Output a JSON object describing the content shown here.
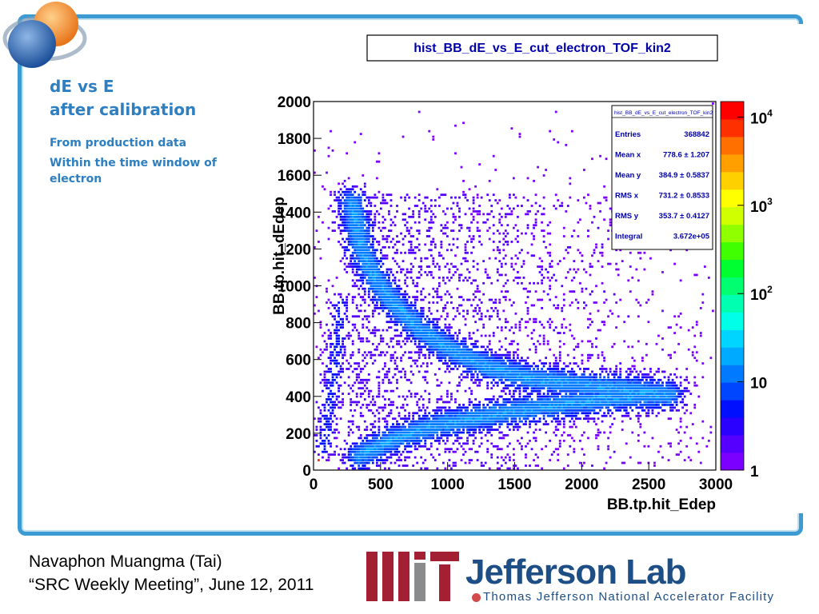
{
  "slide": {
    "title_lines": [
      "dE vs E",
      "after calibration"
    ],
    "bullets": [
      "From production data",
      "Within the time window of electron"
    ],
    "author": "Navaphon Muangma (Tai)",
    "meeting": "“SRC Weekly Meeting”, June 12, 2011",
    "jlab_name": "Jefferson Lab",
    "jlab_subtitle": "Thomas Jefferson National Accelerator Facility",
    "accent_color": "#2d7fc1",
    "frame_color": "#3d9bd3"
  },
  "chart_data": {
    "type": "heatmap",
    "title": "hist_BB_dE_vs_E_cut_electron_TOF_kin2",
    "xlabel": "BB.tp.hit_Edep",
    "ylabel": "BB.tp.hit_dEdep",
    "xlim": [
      0,
      3000
    ],
    "ylim": [
      0,
      2000
    ],
    "x_ticks": [
      0,
      500,
      1000,
      1500,
      2000,
      2500,
      3000
    ],
    "y_ticks": [
      0,
      200,
      400,
      600,
      800,
      1000,
      1200,
      1400,
      1600,
      1800,
      2000
    ],
    "z_scale": "log",
    "z_ticks": [
      {
        "value": 1,
        "label": "1"
      },
      {
        "value": 10,
        "label": "10"
      },
      {
        "value": 100,
        "label": "10",
        "exp": "2"
      },
      {
        "value": 1000,
        "label": "10",
        "exp": "3"
      },
      {
        "value": 10000,
        "label": "10",
        "exp": "4"
      }
    ],
    "colorbar": [
      "#7b00ff",
      "#5500ff",
      "#2a00ff",
      "#0010ff",
      "#0045ff",
      "#007aff",
      "#00aaff",
      "#00d5ff",
      "#00ffe6",
      "#00ffb0",
      "#00ff70",
      "#00ff30",
      "#40ff00",
      "#90ff00",
      "#d0ff00",
      "#ffff00",
      "#ffd000",
      "#ffa000",
      "#ff7000",
      "#ff3000",
      "#ff0000"
    ],
    "bands": [
      {
        "name": "upper band",
        "points": [
          [
            290,
            1450
          ],
          [
            350,
            1220
          ],
          [
            450,
            1050
          ],
          [
            600,
            900
          ],
          [
            800,
            760
          ],
          [
            1000,
            660
          ],
          [
            1300,
            560
          ],
          [
            1600,
            500
          ],
          [
            2000,
            460
          ],
          [
            2400,
            430
          ],
          [
            2650,
            410
          ]
        ]
      },
      {
        "name": "lower band",
        "points": [
          [
            350,
            80
          ],
          [
            600,
            170
          ],
          [
            900,
            240
          ],
          [
            1200,
            280
          ],
          [
            1500,
            320
          ],
          [
            1800,
            350
          ],
          [
            2100,
            380
          ],
          [
            2400,
            400
          ],
          [
            2650,
            410
          ]
        ]
      },
      {
        "name": "left stripe",
        "points": [
          [
            80,
            120
          ],
          [
            110,
            300
          ],
          [
            150,
            500
          ],
          [
            180,
            700
          ],
          [
            210,
            900
          ]
        ]
      }
    ],
    "stats": {
      "name": "hist_BB_dE_vs_E_cut_electron_TOF_kin2",
      "rows": [
        {
          "label": "Entries",
          "value": "368842"
        },
        {
          "label": "Mean x",
          "value": "778.6 ±  1.207"
        },
        {
          "label": "Mean y",
          "value": "384.9 ± 0.5837"
        },
        {
          "label": "RMS x",
          "value": "731.2 ± 0.8533"
        },
        {
          "label": "RMS y",
          "value": "353.7 ± 0.4127"
        },
        {
          "label": "Integral",
          "value": "3.672e+05"
        }
      ]
    }
  }
}
